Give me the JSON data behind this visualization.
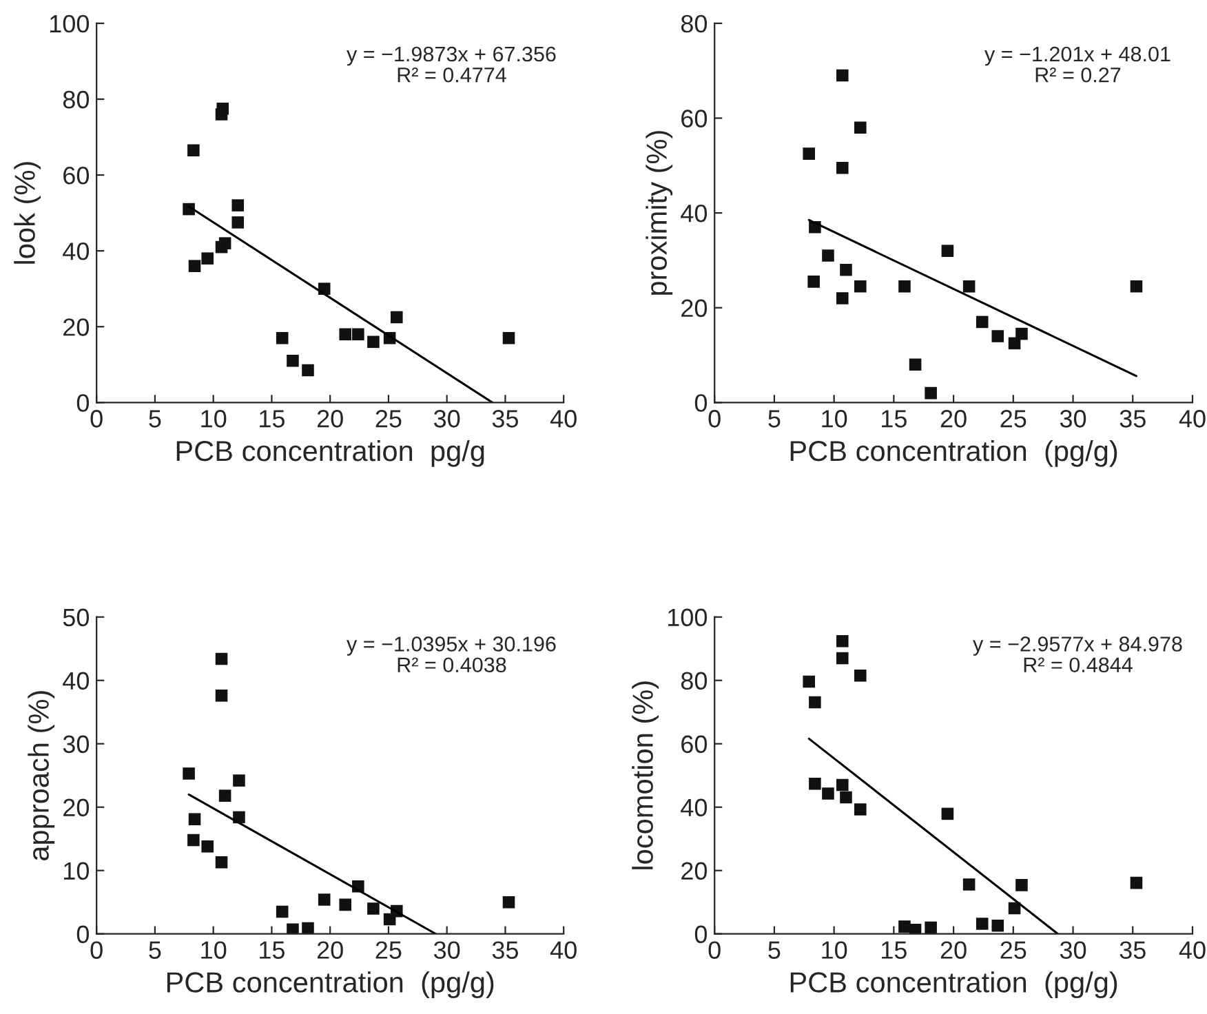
{
  "chart_data": [
    {
      "type": "scatter",
      "xlabel": "PCB concentration  pg/g",
      "ylabel": "look (%)",
      "xlim": [
        0,
        40
      ],
      "xticks": [
        0,
        5,
        10,
        15,
        20,
        25,
        30,
        35,
        40
      ],
      "ylim": [
        0,
        100
      ],
      "yticks": [
        0,
        20,
        40,
        60,
        80,
        100
      ],
      "marker": "square",
      "grid": false,
      "annotations": [
        "y = −1.9873x + 67.356",
        "R² = 0.4774"
      ],
      "series": [
        {
          "color": "#111111",
          "x": [
            7.9,
            8.3,
            8.4,
            9.5,
            10.7,
            11,
            10.7,
            10.8,
            12.1,
            12.1,
            15.9,
            16.8,
            18.1,
            19.5,
            21.3,
            22.4,
            23.7,
            25.1,
            25.7,
            35.3
          ],
          "values": [
            51,
            66.5,
            36,
            38,
            41,
            42,
            76,
            77.5,
            52,
            47.5,
            17,
            11,
            8.5,
            30,
            18,
            18,
            16,
            17,
            22.5,
            17
          ]
        },
        {
          "type": "line",
          "color": "#000000",
          "marker": "none",
          "x": [
            7.9,
            33.9
          ],
          "values": [
            51.7,
            0
          ]
        }
      ]
    },
    {
      "type": "scatter",
      "xlabel": "PCB concentration  (pg/g)",
      "ylabel": "proximity (%)",
      "xlim": [
        0,
        40
      ],
      "xticks": [
        0,
        5,
        10,
        15,
        20,
        25,
        30,
        35,
        40
      ],
      "ylim": [
        0,
        80
      ],
      "yticks": [
        0,
        20,
        40,
        60,
        80
      ],
      "marker": "square",
      "grid": false,
      "annotations": [
        "y = −1.201x + 48.01",
        "R² = 0.27"
      ],
      "series": [
        {
          "color": "#111111",
          "x": [
            7.9,
            8.4,
            8.3,
            9.5,
            10.7,
            10.7,
            11,
            10.7,
            12.2,
            12.2,
            15.9,
            16.8,
            18.1,
            19.5,
            21.3,
            22.4,
            23.7,
            25.1,
            25.7,
            35.3
          ],
          "values": [
            52.5,
            37,
            25.5,
            31,
            69,
            49.5,
            28,
            22,
            58,
            24.5,
            24.5,
            8,
            2,
            32,
            24.5,
            17,
            14,
            12.5,
            14.5,
            24.5
          ]
        },
        {
          "type": "line",
          "color": "#000000",
          "marker": "none",
          "x": [
            7.9,
            35.3
          ],
          "values": [
            38.5,
            5.6
          ]
        }
      ]
    },
    {
      "type": "scatter",
      "xlabel": "PCB concentration  (pg/g)",
      "ylabel": "approach (%)",
      "xlim": [
        0,
        40
      ],
      "xticks": [
        0,
        5,
        10,
        15,
        20,
        25,
        30,
        35,
        40
      ],
      "ylim": [
        0,
        50
      ],
      "yticks": [
        0,
        10,
        20,
        30,
        40,
        50
      ],
      "marker": "square",
      "grid": false,
      "annotations": [
        "y = −1.0395x + 30.196",
        "R² = 0.4038"
      ],
      "series": [
        {
          "color": "#111111",
          "x": [
            7.9,
            8.4,
            8.3,
            9.5,
            10.7,
            10.7,
            11,
            10.7,
            12.2,
            12.2,
            15.9,
            16.8,
            18.1,
            19.5,
            21.3,
            22.4,
            23.7,
            25.1,
            25.7,
            35.3
          ],
          "values": [
            25.3,
            18.1,
            14.8,
            13.8,
            43.4,
            37.6,
            21.8,
            11.3,
            24.2,
            18.4,
            3.5,
            0.7,
            0.9,
            5.4,
            4.6,
            7.5,
            4,
            2.3,
            3.6,
            5
          ]
        },
        {
          "type": "line",
          "color": "#000000",
          "marker": "none",
          "x": [
            7.9,
            29.05
          ],
          "values": [
            22,
            0
          ]
        }
      ]
    },
    {
      "type": "scatter",
      "xlabel": "PCB concentration  (pg/g)",
      "ylabel": "locomotion (%)",
      "xlim": [
        0,
        40
      ],
      "xticks": [
        0,
        5,
        10,
        15,
        20,
        25,
        30,
        35,
        40
      ],
      "ylim": [
        0,
        100
      ],
      "yticks": [
        0,
        20,
        40,
        60,
        80,
        100
      ],
      "marker": "square",
      "grid": false,
      "annotations": [
        "y = −2.9577x + 84.978",
        "R² = 0.4844"
      ],
      "series": [
        {
          "color": "#111111",
          "x": [
            7.9,
            8.4,
            8.4,
            9.5,
            10.7,
            10.7,
            10.7,
            11,
            12.2,
            12.2,
            15.9,
            16.8,
            18.1,
            19.5,
            21.3,
            22.4,
            23.7,
            25.1,
            25.7,
            35.3
          ],
          "values": [
            79.6,
            73.1,
            47.4,
            44.3,
            92.4,
            87,
            47,
            43.1,
            81.5,
            39.3,
            2.3,
            1.3,
            2,
            37.9,
            15.6,
            3.2,
            2.6,
            8.1,
            15.4,
            16.1
          ]
        },
        {
          "type": "line",
          "color": "#000000",
          "marker": "none",
          "x": [
            7.9,
            28.73
          ],
          "values": [
            61.6,
            0
          ]
        }
      ]
    }
  ]
}
